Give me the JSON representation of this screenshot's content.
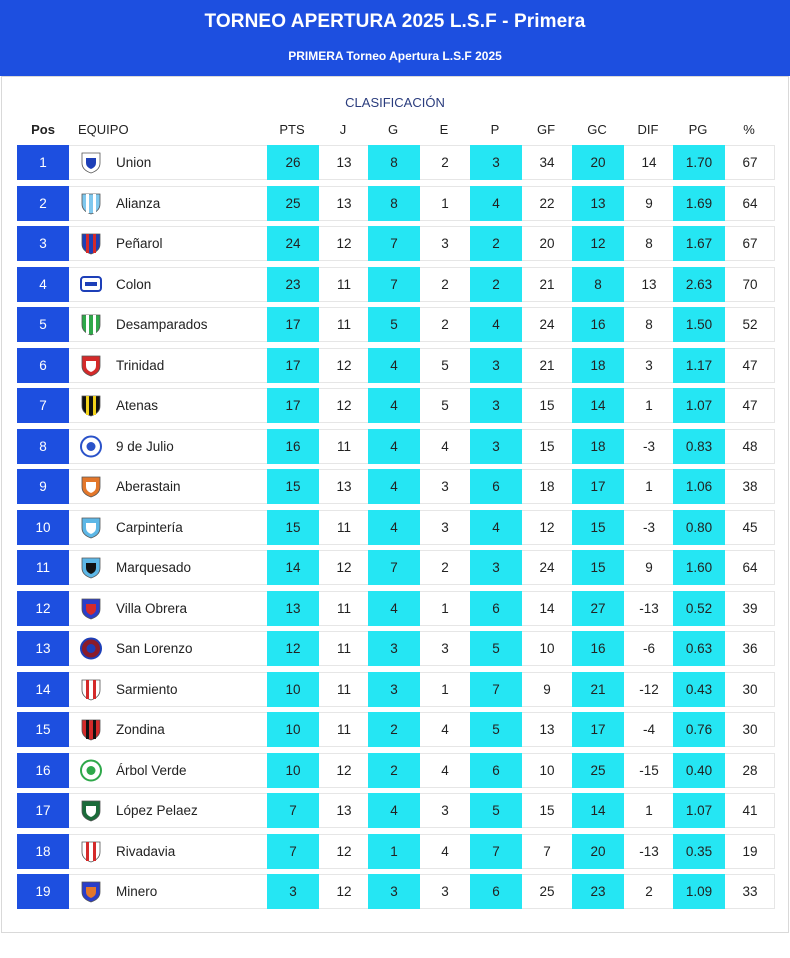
{
  "header": {
    "title": "TORNEO APERTURA 2025 L.S.F - Primera",
    "subtitle": "PRIMERA Torneo Apertura L.S.F 2025"
  },
  "section_title": "CLASIFICACIÓN",
  "columns": {
    "pos": "Pos",
    "team": "EQUIPO",
    "pts": "PTS",
    "j": "J",
    "g": "G",
    "e": "E",
    "p": "P",
    "gf": "GF",
    "gc": "GC",
    "dif": "DIF",
    "pg": "PG",
    "pct": "%"
  },
  "colors": {
    "brand_blue": "#1d4fe0",
    "highlight_cyan": "#25e6f3"
  },
  "rows": [
    {
      "pos": "1",
      "team": "Union",
      "pts": "26",
      "j": "13",
      "g": "8",
      "e": "2",
      "p": "3",
      "gf": "34",
      "gc": "20",
      "dif": "14",
      "pg": "1.70",
      "pct": "67",
      "logo": {
        "c1": "#ffffff",
        "c2": "#1d3fb8",
        "shape": "shield"
      }
    },
    {
      "pos": "2",
      "team": "Alianza",
      "pts": "25",
      "j": "13",
      "g": "8",
      "e": "1",
      "p": "4",
      "gf": "22",
      "gc": "13",
      "dif": "9",
      "pg": "1.69",
      "pct": "64",
      "logo": {
        "c1": "#7fc8ee",
        "c2": "#ffffff",
        "shape": "stripes"
      }
    },
    {
      "pos": "3",
      "team": "Peñarol",
      "pts": "24",
      "j": "12",
      "g": "7",
      "e": "3",
      "p": "2",
      "gf": "20",
      "gc": "12",
      "dif": "8",
      "pg": "1.67",
      "pct": "67",
      "logo": {
        "c1": "#1d3fb8",
        "c2": "#d42a2a",
        "shape": "stripes"
      }
    },
    {
      "pos": "4",
      "team": "Colon",
      "pts": "23",
      "j": "11",
      "g": "7",
      "e": "2",
      "p": "2",
      "gf": "21",
      "gc": "8",
      "dif": "13",
      "pg": "2.63",
      "pct": "70",
      "logo": {
        "c1": "#ffffff",
        "c2": "#1d3fb8",
        "shape": "badge"
      }
    },
    {
      "pos": "5",
      "team": "Desamparados",
      "pts": "17",
      "j": "11",
      "g": "5",
      "e": "2",
      "p": "4",
      "gf": "24",
      "gc": "16",
      "dif": "8",
      "pg": "1.50",
      "pct": "52",
      "logo": {
        "c1": "#2ea84a",
        "c2": "#ffffff",
        "shape": "stripes"
      }
    },
    {
      "pos": "6",
      "team": "Trinidad",
      "pts": "17",
      "j": "12",
      "g": "4",
      "e": "5",
      "p": "3",
      "gf": "21",
      "gc": "18",
      "dif": "3",
      "pg": "1.17",
      "pct": "47",
      "logo": {
        "c1": "#d42a2a",
        "c2": "#ffffff",
        "shape": "shield"
      }
    },
    {
      "pos": "7",
      "team": "Atenas",
      "pts": "17",
      "j": "12",
      "g": "4",
      "e": "5",
      "p": "3",
      "gf": "15",
      "gc": "14",
      "dif": "1",
      "pg": "1.07",
      "pct": "47",
      "logo": {
        "c1": "#111111",
        "c2": "#f2d21b",
        "shape": "stripes"
      }
    },
    {
      "pos": "8",
      "team": "9 de Julio",
      "pts": "16",
      "j": "11",
      "g": "4",
      "e": "4",
      "p": "3",
      "gf": "15",
      "gc": "18",
      "dif": "-3",
      "pg": "0.83",
      "pct": "48",
      "logo": {
        "c1": "#ffffff",
        "c2": "#2a52c9",
        "shape": "circle"
      }
    },
    {
      "pos": "9",
      "team": "Aberastain",
      "pts": "15",
      "j": "13",
      "g": "4",
      "e": "3",
      "p": "6",
      "gf": "18",
      "gc": "17",
      "dif": "1",
      "pg": "1.06",
      "pct": "38",
      "logo": {
        "c1": "#e3772b",
        "c2": "#ffffff",
        "shape": "shield"
      }
    },
    {
      "pos": "10",
      "team": "Carpintería",
      "pts": "15",
      "j": "11",
      "g": "4",
      "e": "3",
      "p": "4",
      "gf": "12",
      "gc": "15",
      "dif": "-3",
      "pg": "0.80",
      "pct": "45",
      "logo": {
        "c1": "#5db7e6",
        "c2": "#ffffff",
        "shape": "shield"
      }
    },
    {
      "pos": "11",
      "team": "Marquesado",
      "pts": "14",
      "j": "12",
      "g": "7",
      "e": "2",
      "p": "3",
      "gf": "24",
      "gc": "15",
      "dif": "9",
      "pg": "1.60",
      "pct": "64",
      "logo": {
        "c1": "#5db7e6",
        "c2": "#111111",
        "shape": "shield"
      }
    },
    {
      "pos": "12",
      "team": "Villa Obrera",
      "pts": "13",
      "j": "11",
      "g": "4",
      "e": "1",
      "p": "6",
      "gf": "14",
      "gc": "27",
      "dif": "-13",
      "pg": "0.52",
      "pct": "39",
      "logo": {
        "c1": "#2a3ec9",
        "c2": "#d42a2a",
        "shape": "shield"
      }
    },
    {
      "pos": "13",
      "team": "San Lorenzo",
      "pts": "12",
      "j": "11",
      "g": "3",
      "e": "3",
      "p": "5",
      "gf": "10",
      "gc": "16",
      "dif": "-6",
      "pg": "0.63",
      "pct": "36",
      "logo": {
        "c1": "#8b1b2a",
        "c2": "#1d3fb8",
        "shape": "circle"
      }
    },
    {
      "pos": "14",
      "team": "Sarmiento",
      "pts": "10",
      "j": "11",
      "g": "3",
      "e": "1",
      "p": "7",
      "gf": "9",
      "gc": "21",
      "dif": "-12",
      "pg": "0.43",
      "pct": "30",
      "logo": {
        "c1": "#ffffff",
        "c2": "#d42a2a",
        "shape": "stripes"
      }
    },
    {
      "pos": "15",
      "team": "Zondina",
      "pts": "10",
      "j": "11",
      "g": "2",
      "e": "4",
      "p": "5",
      "gf": "13",
      "gc": "17",
      "dif": "-4",
      "pg": "0.76",
      "pct": "30",
      "logo": {
        "c1": "#d42a2a",
        "c2": "#111111",
        "shape": "stripes"
      }
    },
    {
      "pos": "16",
      "team": "Árbol Verde",
      "pts": "10",
      "j": "12",
      "g": "2",
      "e": "4",
      "p": "6",
      "gf": "10",
      "gc": "25",
      "dif": "-15",
      "pg": "0.40",
      "pct": "28",
      "logo": {
        "c1": "#ffffff",
        "c2": "#2ea84a",
        "shape": "circle"
      }
    },
    {
      "pos": "17",
      "team": "López Pelaez",
      "pts": "7",
      "j": "13",
      "g": "4",
      "e": "3",
      "p": "5",
      "gf": "15",
      "gc": "14",
      "dif": "1",
      "pg": "1.07",
      "pct": "41",
      "logo": {
        "c1": "#1b6b3a",
        "c2": "#ffffff",
        "shape": "shield"
      }
    },
    {
      "pos": "18",
      "team": "Rivadavia",
      "pts": "7",
      "j": "12",
      "g": "1",
      "e": "4",
      "p": "7",
      "gf": "7",
      "gc": "20",
      "dif": "-13",
      "pg": "0.35",
      "pct": "19",
      "logo": {
        "c1": "#ffffff",
        "c2": "#d42a2a",
        "shape": "stripes"
      }
    },
    {
      "pos": "19",
      "team": "Minero",
      "pts": "3",
      "j": "12",
      "g": "3",
      "e": "3",
      "p": "6",
      "gf": "25",
      "gc": "23",
      "dif": "2",
      "pg": "1.09",
      "pct": "33",
      "logo": {
        "c1": "#2a3ec9",
        "c2": "#e3772b",
        "shape": "shield"
      }
    }
  ]
}
